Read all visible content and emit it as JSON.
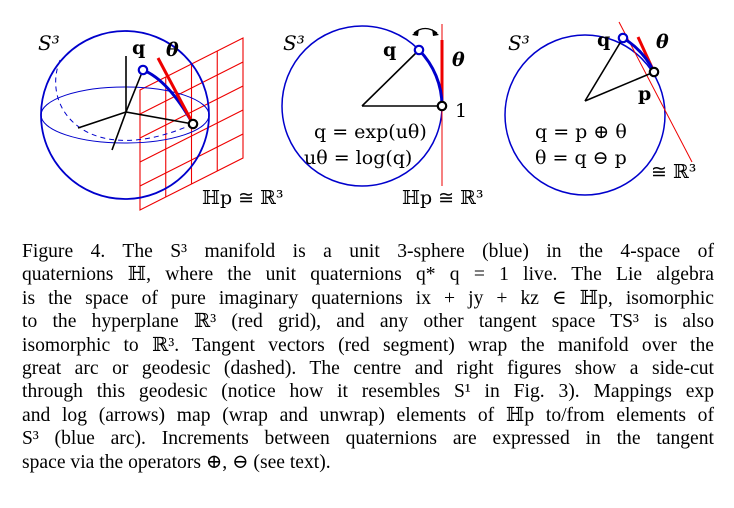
{
  "figure": {
    "left": {
      "manifold_label": "S³",
      "point_label": "q",
      "vector_label": "θ",
      "plane_label": "ℍp ≅ ℝ³"
    },
    "center": {
      "manifold_label": "S³",
      "point_label": "q",
      "vector_label": "θ",
      "origin_label": "1",
      "eq_exp": "q = exp(uθ)",
      "eq_log": "uθ = log(q)",
      "plane_label": "ℍp ≅ ℝ³"
    },
    "right": {
      "manifold_label": "S³",
      "point_label": "q",
      "vector_label": "θ",
      "base_label": "p",
      "eq_plus": "q = p ⊕ θ",
      "eq_minus": "θ = q ⊖ p",
      "plane_label": "≅ ℝ³"
    }
  },
  "caption": {
    "lines": [
      "Figure 4.   The S³ manifold is a unit 3-sphere (blue) in the 4-space of",
      "quaternions ℍ, where the unit quaternions q* q = 1 live. The Lie algebra",
      "is the space of pure imaginary quaternions ix + jy + kz ∈ ℍp, isomorphic",
      "to the hyperplane ℝ³ (red grid), and any other tangent space TS³ is also",
      "isomorphic to ℝ³. Tangent vectors (red segment) wrap the manifold over the",
      "great arc or geodesic (dashed). The centre and right figures show a side-cut",
      "through this geodesic (notice how it resembles S¹ in Fig. 3). Mappings exp",
      "and log (arrows) map (wrap and unwrap) elements of ℍp to/from elements of",
      "S³ (blue arc). Increments between quaternions are expressed in the tangent",
      "space via the operators ⊕, ⊖ (see text)."
    ]
  },
  "colors": {
    "manifold": "#0000cc",
    "tangent": "#ee0000",
    "ink": "#000000"
  }
}
